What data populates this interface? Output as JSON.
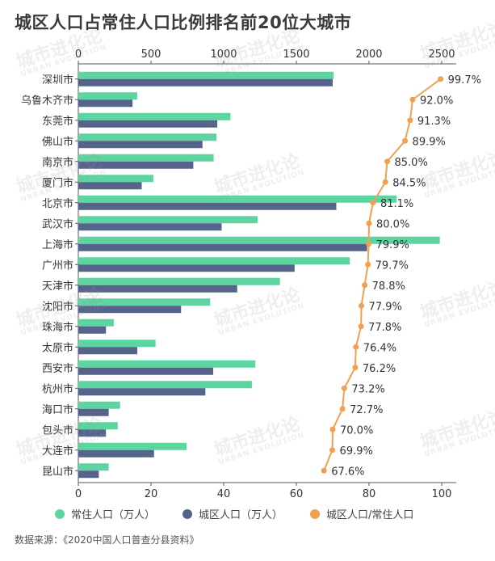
{
  "title": "城区人口占常住人口比例排名前20位大城市",
  "source": "数据来源：《2020中国人口普查分县资料》",
  "watermark": {
    "cn": "城市进化论",
    "en": "URBAN EVOLUTION"
  },
  "colors": {
    "resident": "#5dd5a0",
    "urban": "#56648c",
    "ratio": "#f0a050"
  },
  "chart_data": {
    "type": "bar",
    "orientation": "horizontal",
    "title": "城区人口占常住人口比例排名前20位大城市",
    "categories": [
      "深圳市",
      "乌鲁木齐市",
      "东莞市",
      "佛山市",
      "南京市",
      "厦门市",
      "北京市",
      "武汉市",
      "上海市",
      "广州市",
      "天津市",
      "沈阳市",
      "珠海市",
      "太原市",
      "西安市",
      "杭州市",
      "海口市",
      "包头市",
      "大连市",
      "昆山市"
    ],
    "top_axis": {
      "range": [
        0,
        2600
      ],
      "ticks": [
        0,
        500,
        1000,
        1500,
        2000,
        2500
      ]
    },
    "bottom_axis": {
      "range": [
        0,
        104
      ],
      "ticks": [
        0,
        20,
        40,
        60,
        80,
        100
      ]
    },
    "series": [
      {
        "name": "常住人口（万人）",
        "axis": "top",
        "color": "#5dd5a0",
        "values": [
          1756,
          405,
          1047,
          950,
          931,
          516,
          2189,
          1233,
          2487,
          1868,
          1387,
          907,
          244,
          531,
          1218,
          1194,
          287,
          271,
          745,
          209
        ]
      },
      {
        "name": "城区人口（万人）",
        "axis": "top",
        "color": "#56648c",
        "values": [
          1750,
          373,
          956,
          854,
          791,
          436,
          1775,
          986,
          1987,
          1488,
          1093,
          707,
          190,
          406,
          928,
          874,
          209,
          190,
          521,
          141
        ]
      },
      {
        "name": "城区人口/常住人口",
        "axis": "bottom",
        "color": "#f0a050",
        "values": [
          99.7,
          92.0,
          91.3,
          89.9,
          85.0,
          84.5,
          81.1,
          80.0,
          79.9,
          79.7,
          78.8,
          77.9,
          77.8,
          76.4,
          76.2,
          73.2,
          72.7,
          70.0,
          69.9,
          67.6
        ],
        "labels": [
          "99.7%",
          "92.0%",
          "91.3%",
          "89.9%",
          "85.0%",
          "84.5%",
          "81.1%",
          "80.0%",
          "79.9%",
          "79.7%",
          "78.8%",
          "77.9%",
          "77.8%",
          "76.4%",
          "76.2%",
          "73.2%",
          "72.7%",
          "70.0%",
          "69.9%",
          "67.6%"
        ]
      }
    ],
    "legend": {
      "position": "bottom",
      "items": [
        "常住人口（万人）",
        "城区人口（万人）",
        "城区人口/常住人口"
      ]
    },
    "grid": false
  }
}
